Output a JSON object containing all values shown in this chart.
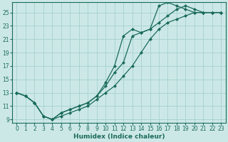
{
  "xlabel": "Humidex (Indice chaleur)",
  "bg_color": "#cce8e6",
  "grid_color": "#a8d4d1",
  "line_color": "#1a6b5a",
  "xlim": [
    -0.5,
    23.5
  ],
  "ylim": [
    8.5,
    26.5
  ],
  "xticks": [
    0,
    1,
    2,
    3,
    4,
    5,
    6,
    7,
    8,
    9,
    10,
    11,
    12,
    13,
    14,
    15,
    16,
    17,
    18,
    19,
    20,
    21,
    22,
    23
  ],
  "yticks": [
    9,
    11,
    13,
    15,
    17,
    19,
    21,
    23,
    25
  ],
  "line_a_x": [
    0,
    1,
    2,
    3,
    4,
    5,
    6,
    7,
    8,
    9,
    10,
    11,
    12,
    13,
    14,
    15,
    16,
    17,
    18,
    19,
    20,
    21,
    22,
    23
  ],
  "line_a_y": [
    13.0,
    12.5,
    11.5,
    9.5,
    9.0,
    9.5,
    10.0,
    10.5,
    11.0,
    12.0,
    13.0,
    14.0,
    15.5,
    17.0,
    19.0,
    21.0,
    22.5,
    23.5,
    24.0,
    24.5,
    25.0,
    25.0,
    25.0,
    25.0
  ],
  "line_b_x": [
    0,
    1,
    2,
    3,
    4,
    5,
    6,
    7,
    8,
    9,
    10,
    11,
    12,
    13,
    14,
    15,
    16,
    17,
    18,
    19,
    20,
    21,
    22,
    23
  ],
  "line_b_y": [
    13.0,
    12.5,
    11.5,
    9.5,
    9.0,
    10.0,
    10.5,
    11.0,
    11.5,
    12.5,
    14.0,
    16.0,
    17.5,
    21.5,
    22.0,
    22.5,
    23.5,
    24.5,
    25.5,
    26.0,
    25.5,
    25.0,
    25.0,
    25.0
  ],
  "line_c_x": [
    0,
    1,
    2,
    3,
    4,
    5,
    6,
    7,
    8,
    9,
    10,
    11,
    12,
    13,
    14,
    15,
    16,
    17,
    18,
    19,
    20,
    21,
    22,
    23
  ],
  "line_c_y": [
    13.0,
    12.5,
    11.5,
    9.5,
    9.0,
    10.0,
    10.5,
    11.0,
    11.5,
    12.5,
    14.5,
    17.0,
    21.5,
    22.5,
    22.0,
    22.5,
    26.0,
    26.5,
    26.0,
    25.5,
    25.0,
    25.0,
    25.0,
    25.0
  ]
}
